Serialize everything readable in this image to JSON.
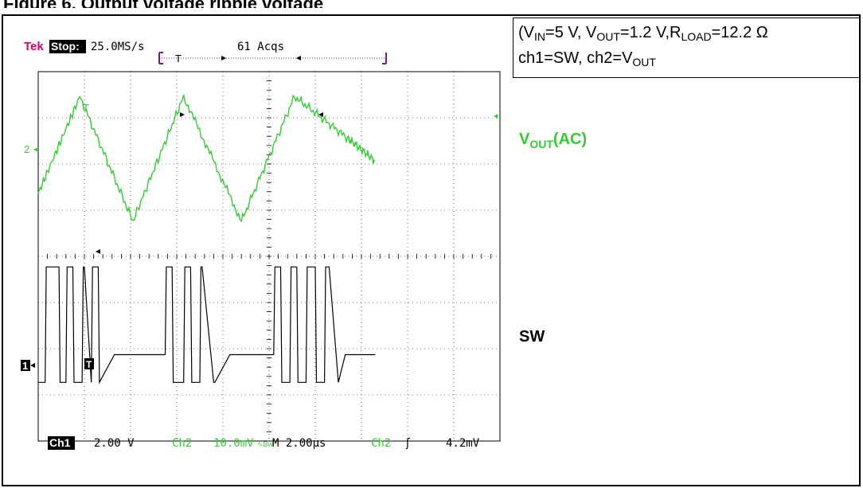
{
  "figure_caption": "Figure 6. Output voltage ripple voltage",
  "scope": {
    "brand": "Tek",
    "status": "Stop:",
    "sample_rate": "25.0MS/s",
    "acquisitions": "61 Acqs",
    "trigger_marker": "T",
    "ch1_marker": "1",
    "ch2_marker": "2",
    "readout": {
      "ch1_label": "Ch1",
      "ch1_scale": "2.00 V",
      "ch2_label": "Ch2",
      "ch2_scale": "10.0mV",
      "ch2_coupling": "∿Bw",
      "timebase": "M 2.00µs",
      "trigger_src": "Ch2",
      "trigger_slope": "ʃ",
      "trigger_level": "4.2mV"
    }
  },
  "info": {
    "line1": {
      "vin_label": "V",
      "vin_sub": "IN",
      "vin_value": "=5 V, ",
      "vout_label": "V",
      "vout_sub": "OUT",
      "vout_value": "=1.2 V,",
      "rload_label": "R",
      "rload_sub": "LOAD",
      "rload_value": "=12.2 Ω"
    },
    "line2": {
      "prefix": "ch1=SW, ch2=V",
      "sub": "OUT"
    }
  },
  "labels": {
    "vout": "V",
    "vout_sub": "OUT",
    "vout_suffix": "(AC)",
    "sw": "SW"
  },
  "colors": {
    "ch1": "#000000",
    "ch2": "#33cc33",
    "brand": "#d6006e",
    "trigger_bar": "#7a1f6e"
  },
  "chart_data": {
    "type": "line",
    "title": "",
    "x_unit": "µs",
    "x_per_div": 2.0,
    "divisions_x": 10,
    "grid": true,
    "series": [
      {
        "name": "ch2=VOUT",
        "label": "VOUT(AC)",
        "unit": "mV",
        "per_div": 10.0,
        "x": [
          0.0,
          1.8,
          4.1,
          6.3,
          8.8,
          11.1,
          13.4,
          14.6
        ],
        "y": [
          -7,
          14,
          -13,
          14,
          -13,
          14,
          5,
          0
        ]
      },
      {
        "name": "ch1=SW",
        "label": "SW",
        "unit": "V",
        "per_div": 2.0,
        "description": "switching node: bursts of 0-5 V pulses followed by damped ringing around ~1.2 V",
        "x": [
          0.0,
          0.3,
          0.35,
          0.9,
          0.95,
          1.2,
          1.25,
          1.5,
          1.55,
          1.9,
          1.95,
          2.0,
          2.3,
          2.35,
          2.6,
          2.65,
          3.3,
          5.0,
          5.5,
          5.55,
          5.8,
          5.85,
          6.3,
          6.35,
          6.6,
          6.65,
          7.0,
          7.05,
          7.1,
          7.6,
          7.65,
          8.3,
          10.0,
          10.2,
          10.25,
          10.5,
          10.55,
          10.9,
          10.95,
          11.2,
          11.25,
          11.6,
          11.65,
          12.0,
          12.05,
          12.4,
          12.45,
          12.6,
          13.0,
          13.3,
          14.6
        ],
        "y": [
          0,
          0,
          5,
          5,
          0,
          0,
          5,
          5,
          0,
          0,
          5,
          5,
          0,
          5,
          5,
          0,
          1.2,
          1.2,
          1.2,
          5,
          5,
          0,
          0,
          5,
          5,
          0,
          0,
          5,
          5,
          0,
          0,
          1.2,
          1.2,
          1.2,
          5,
          5,
          0,
          0,
          5,
          5,
          0,
          0,
          5,
          5,
          0,
          0,
          5,
          5,
          0,
          1.2,
          1.2
        ]
      }
    ]
  }
}
